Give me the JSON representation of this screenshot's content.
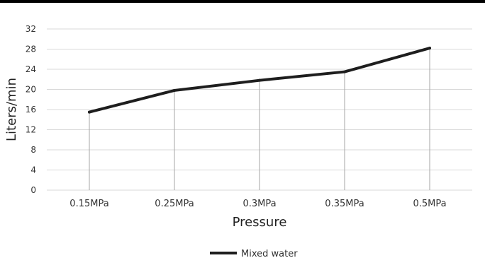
{
  "chart_data": {
    "type": "line",
    "categories": [
      "0.15MPa",
      "0.25MPa",
      "0.3MPa",
      "0.35MPa",
      "0.5MPa"
    ],
    "series": [
      {
        "name": "Mixed water",
        "values": [
          15.5,
          19.8,
          21.8,
          23.5,
          28.2
        ],
        "color": "#1e1e1e"
      }
    ],
    "title": "",
    "xlabel": "Pressure",
    "ylabel": "Liters/min",
    "ylim": [
      0,
      32
    ],
    "yticks": [
      0,
      4,
      8,
      12,
      16,
      20,
      24,
      28,
      32
    ],
    "grid": true,
    "drop_lines": true,
    "legend_position": "bottom-center",
    "colors": {
      "grid": "#d9d9d9",
      "drop_line": "#a6a6a6",
      "top_band": "#000000"
    }
  }
}
